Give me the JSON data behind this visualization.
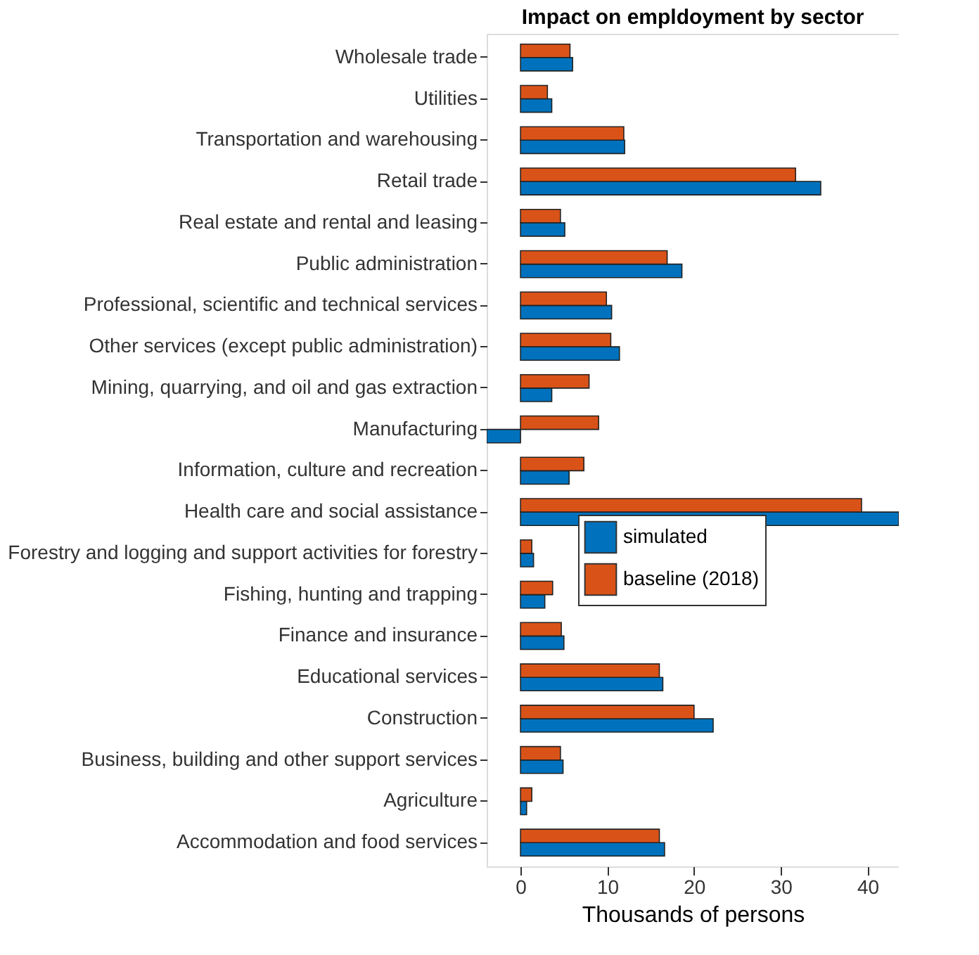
{
  "chart_data": {
    "type": "bar",
    "orientation": "horizontal",
    "title": "Impact on empldoyment by sector",
    "xlabel": "Thousands of persons",
    "categories": [
      "Wholesale trade",
      "Utilities",
      "Transportation and warehousing",
      "Retail trade",
      "Real estate and rental and leasing",
      "Public administration",
      "Professional, scientific and technical services",
      "Other services (except public administration)",
      "Mining, quarrying, and oil and gas extraction",
      "Manufacturing",
      "Information, culture and recreation",
      "Health care and social assistance",
      "Forestry and logging and support activities for forestry",
      "Fishing, hunting and trapping",
      "Finance and insurance",
      "Educational services",
      "Construction",
      "Business, building and other support services",
      "Agriculture",
      "Accommodation and food services"
    ],
    "series": [
      {
        "name": "simulated",
        "color": "#0072bd",
        "values": [
          6.0,
          3.6,
          12.0,
          34.6,
          5.1,
          18.6,
          10.5,
          11.4,
          3.6,
          -3.9,
          5.6,
          43.6,
          1.5,
          2.8,
          5.0,
          16.4,
          22.2,
          4.9,
          0.7,
          16.6
        ]
      },
      {
        "name": "baseline (2018)",
        "color": "#d95319",
        "values": [
          5.7,
          3.1,
          11.9,
          31.7,
          4.6,
          16.9,
          9.9,
          10.4,
          7.9,
          9.0,
          7.3,
          39.3,
          1.3,
          3.7,
          4.7,
          16.0,
          20.0,
          4.6,
          1.3,
          16.0
        ]
      }
    ],
    "xlim": [
      -3.9,
      43.6
    ],
    "xticks": [
      0,
      10,
      20,
      30,
      40
    ],
    "grid": false,
    "legend": "center"
  }
}
